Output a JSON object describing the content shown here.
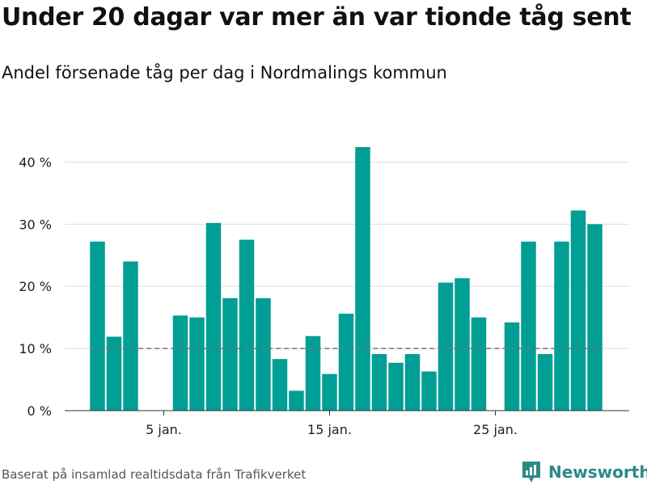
{
  "title": "Under 20 dagar var mer än var tionde tåg sent",
  "subtitle": "Andel försenade tåg per dag i Nordmalings kommun",
  "footer": {
    "source": "Baserat på insamlad realtidsdata från Trafikverket",
    "brand": "Newsworthy"
  },
  "colors": {
    "bar": "#009e94",
    "brand": "#2b8a86",
    "grid": "#dddddd",
    "reference": "#777777"
  },
  "chart_data": {
    "type": "bar",
    "title": "Under 20 dagar var mer än var tionde tåg sent",
    "subtitle": "Andel försenade tåg per dag i Nordmalings kommun",
    "xlabel": "",
    "ylabel": "",
    "x": [
      1,
      2,
      3,
      4,
      5,
      6,
      7,
      8,
      9,
      10,
      11,
      12,
      13,
      14,
      15,
      16,
      17,
      18,
      19,
      20,
      21,
      22,
      23,
      24,
      25,
      26,
      27,
      28,
      29,
      30,
      31
    ],
    "values": [
      27.2,
      11.9,
      24.0,
      0,
      0,
      15.3,
      15.0,
      30.2,
      18.1,
      27.5,
      18.1,
      8.3,
      3.2,
      12.0,
      5.9,
      15.6,
      42.4,
      9.1,
      7.7,
      9.1,
      6.3,
      20.6,
      21.3,
      15.0,
      0,
      14.2,
      27.2,
      9.1,
      27.2,
      32.2,
      30.0
    ],
    "ylim": [
      0,
      45
    ],
    "yticks": [
      0,
      10,
      20,
      30,
      40
    ],
    "ytick_labels": [
      "0 %",
      "10 %",
      "20 %",
      "30 %",
      "40 %"
    ],
    "xticks": [
      5,
      15,
      25
    ],
    "xtick_labels": [
      "5 jan.",
      "15 jan.",
      "25 jan."
    ],
    "reference_line": 10,
    "grid": true
  }
}
